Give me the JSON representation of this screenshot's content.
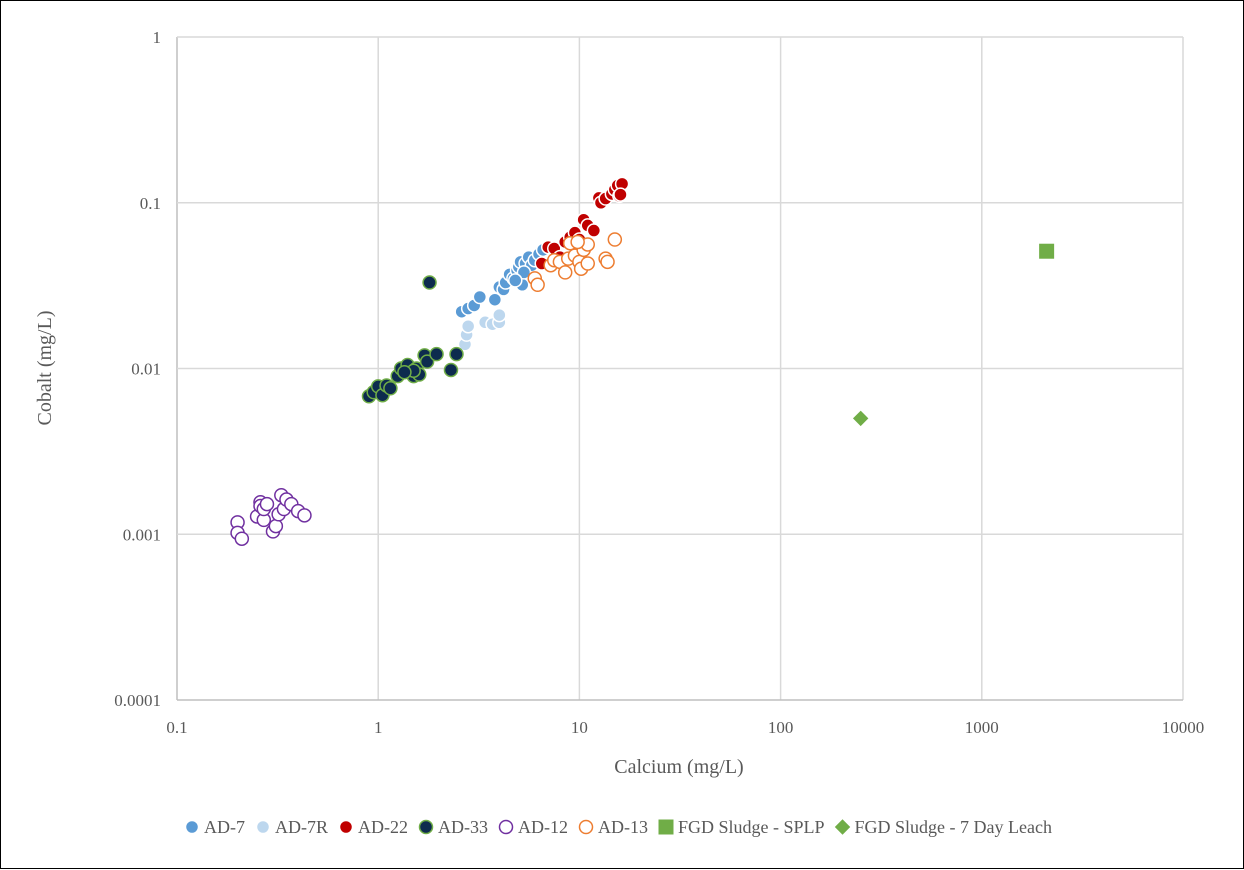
{
  "chart_data": {
    "type": "scatter",
    "title": "",
    "xlabel": "Calcium (mg/L)",
    "ylabel": "Cobalt (mg/L)",
    "x_scale": "log",
    "y_scale": "log",
    "xlim": [
      0.1,
      10000
    ],
    "ylim": [
      0.0001,
      1
    ],
    "x_ticks": [
      "0.1",
      "1",
      "10",
      "100",
      "1000",
      "10000"
    ],
    "y_ticks": [
      "0.0001",
      "0.001",
      "0.01",
      "0.1",
      "1"
    ],
    "grid": true,
    "legend_position": "bottom",
    "series": [
      {
        "name": "AD-7",
        "marker": "circle",
        "fill": "#5b9bd5",
        "stroke": "#ffffff",
        "points": [
          [
            2.6,
            0.022
          ],
          [
            2.8,
            0.023
          ],
          [
            3.0,
            0.024
          ],
          [
            3.2,
            0.027
          ],
          [
            3.8,
            0.026
          ],
          [
            4.0,
            0.031
          ],
          [
            4.2,
            0.03
          ],
          [
            4.3,
            0.033
          ],
          [
            4.5,
            0.037
          ],
          [
            4.7,
            0.035
          ],
          [
            4.9,
            0.039
          ],
          [
            5.0,
            0.041
          ],
          [
            5.1,
            0.044
          ],
          [
            5.2,
            0.032
          ],
          [
            5.4,
            0.043
          ],
          [
            5.6,
            0.047
          ],
          [
            5.8,
            0.042
          ],
          [
            6.0,
            0.045
          ],
          [
            6.3,
            0.049
          ],
          [
            6.6,
            0.052
          ],
          [
            5.3,
            0.038
          ],
          [
            4.8,
            0.034
          ]
        ]
      },
      {
        "name": "AD-7R",
        "marker": "circle",
        "fill": "#bdd7ee",
        "stroke": "#ffffff",
        "points": [
          [
            2.7,
            0.014
          ],
          [
            2.75,
            0.016
          ],
          [
            2.8,
            0.018
          ],
          [
            3.4,
            0.019
          ],
          [
            3.7,
            0.0185
          ],
          [
            4.0,
            0.019
          ],
          [
            4.0,
            0.021
          ]
        ]
      },
      {
        "name": "AD-22",
        "marker": "circle",
        "fill": "#c00000",
        "stroke": "#ffffff",
        "points": [
          [
            6.5,
            0.043
          ],
          [
            7.0,
            0.054
          ],
          [
            7.5,
            0.053
          ],
          [
            8.0,
            0.047
          ],
          [
            8.5,
            0.058
          ],
          [
            9.0,
            0.062
          ],
          [
            9.5,
            0.066
          ],
          [
            10.0,
            0.06
          ],
          [
            10.5,
            0.079
          ],
          [
            11.0,
            0.073
          ],
          [
            11.8,
            0.068
          ],
          [
            12.5,
            0.107
          ],
          [
            12.8,
            0.1
          ],
          [
            13.5,
            0.106
          ],
          [
            14.5,
            0.113
          ],
          [
            15.0,
            0.12
          ],
          [
            15.5,
            0.127
          ],
          [
            15.8,
            0.11
          ],
          [
            16.3,
            0.13
          ],
          [
            16.0,
            0.112
          ]
        ]
      },
      {
        "name": "AD-33",
        "marker": "circle",
        "fill": "#0d2b4e",
        "stroke": "#70ad47",
        "points": [
          [
            0.9,
            0.0068
          ],
          [
            0.95,
            0.0072
          ],
          [
            1.0,
            0.0078
          ],
          [
            1.05,
            0.0069
          ],
          [
            1.1,
            0.0079
          ],
          [
            1.15,
            0.0076
          ],
          [
            1.25,
            0.009
          ],
          [
            1.3,
            0.01
          ],
          [
            1.4,
            0.0105
          ],
          [
            1.5,
            0.009
          ],
          [
            1.55,
            0.01
          ],
          [
            1.6,
            0.0092
          ],
          [
            1.7,
            0.012
          ],
          [
            1.75,
            0.011
          ],
          [
            1.8,
            0.033
          ],
          [
            1.95,
            0.0122
          ],
          [
            2.3,
            0.0098
          ],
          [
            2.45,
            0.0122
          ],
          [
            1.5,
            0.0097
          ],
          [
            1.35,
            0.0095
          ]
        ]
      },
      {
        "name": "AD-12",
        "marker": "circle",
        "fill": "#ffffff",
        "stroke": "#7030a0",
        "points": [
          [
            0.2,
            0.00118
          ],
          [
            0.2,
            0.00102
          ],
          [
            0.21,
            0.00094
          ],
          [
            0.25,
            0.00128
          ],
          [
            0.26,
            0.00156
          ],
          [
            0.26,
            0.00148
          ],
          [
            0.27,
            0.00122
          ],
          [
            0.27,
            0.00142
          ],
          [
            0.28,
            0.00152
          ],
          [
            0.3,
            0.00104
          ],
          [
            0.31,
            0.00112
          ],
          [
            0.32,
            0.00132
          ],
          [
            0.33,
            0.00172
          ],
          [
            0.34,
            0.00142
          ],
          [
            0.35,
            0.00162
          ],
          [
            0.37,
            0.00152
          ],
          [
            0.4,
            0.00138
          ],
          [
            0.43,
            0.0013
          ]
        ]
      },
      {
        "name": "AD-13",
        "marker": "circle",
        "fill": "#ffffff",
        "stroke": "#ed7d31",
        "points": [
          [
            6.0,
            0.035
          ],
          [
            6.2,
            0.032
          ],
          [
            7.2,
            0.042
          ],
          [
            7.5,
            0.045
          ],
          [
            8.0,
            0.044
          ],
          [
            8.5,
            0.038
          ],
          [
            8.8,
            0.046
          ],
          [
            9.0,
            0.057
          ],
          [
            9.5,
            0.048
          ],
          [
            10.0,
            0.044
          ],
          [
            10.2,
            0.04
          ],
          [
            10.5,
            0.052
          ],
          [
            11.0,
            0.056
          ],
          [
            11.0,
            0.043
          ],
          [
            13.5,
            0.046
          ],
          [
            13.8,
            0.044
          ],
          [
            15.0,
            0.06
          ],
          [
            9.8,
            0.058
          ]
        ]
      },
      {
        "name": "FGD Sludge - SPLP",
        "marker": "square",
        "fill": "#70ad47",
        "stroke": "#70ad47",
        "points": [
          [
            2100,
            0.051
          ]
        ]
      },
      {
        "name": "FGD Sludge - 7 Day Leach",
        "marker": "diamond",
        "fill": "#70ad47",
        "stroke": "#70ad47",
        "points": [
          [
            250,
            0.005
          ]
        ]
      }
    ]
  },
  "colors": {
    "grid": "#d9d9d9",
    "axis": "#bfbfbf",
    "text": "#595959"
  }
}
